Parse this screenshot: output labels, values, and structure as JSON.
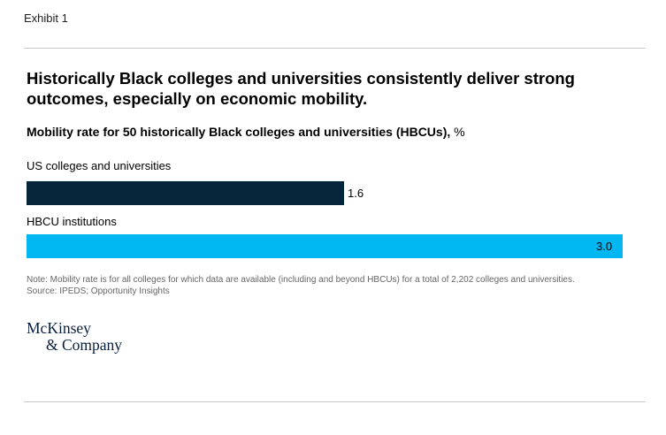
{
  "header": {
    "exhibit": "Exhibit 1"
  },
  "chart_data": {
    "type": "bar",
    "orientation": "horizontal",
    "title": "Historically Black colleges and universities consistently deliver strong outcomes, especially on economic mobility.",
    "subtitle": "Mobility rate for 50 historically Black colleges and universities (HBCUs),",
    "unit": "%",
    "categories": [
      "US colleges and universities",
      "HBCU institutions"
    ],
    "values": [
      1.6,
      3.0
    ],
    "value_labels": [
      "1.6",
      "3.0"
    ],
    "colors": [
      "#04253a",
      "#00b7f1"
    ],
    "xlim": [
      0,
      3.0
    ],
    "grid": false,
    "legend": "none"
  },
  "footer": {
    "note": "Note: Mobility rate is for all colleges for which data are available (including and beyond HBCUs) for a total of 2,202 colleges and universities.",
    "source": "Source: IPEDS; Opportunity Insights"
  },
  "logo": {
    "line1": "McKinsey",
    "line2": "& Company"
  }
}
